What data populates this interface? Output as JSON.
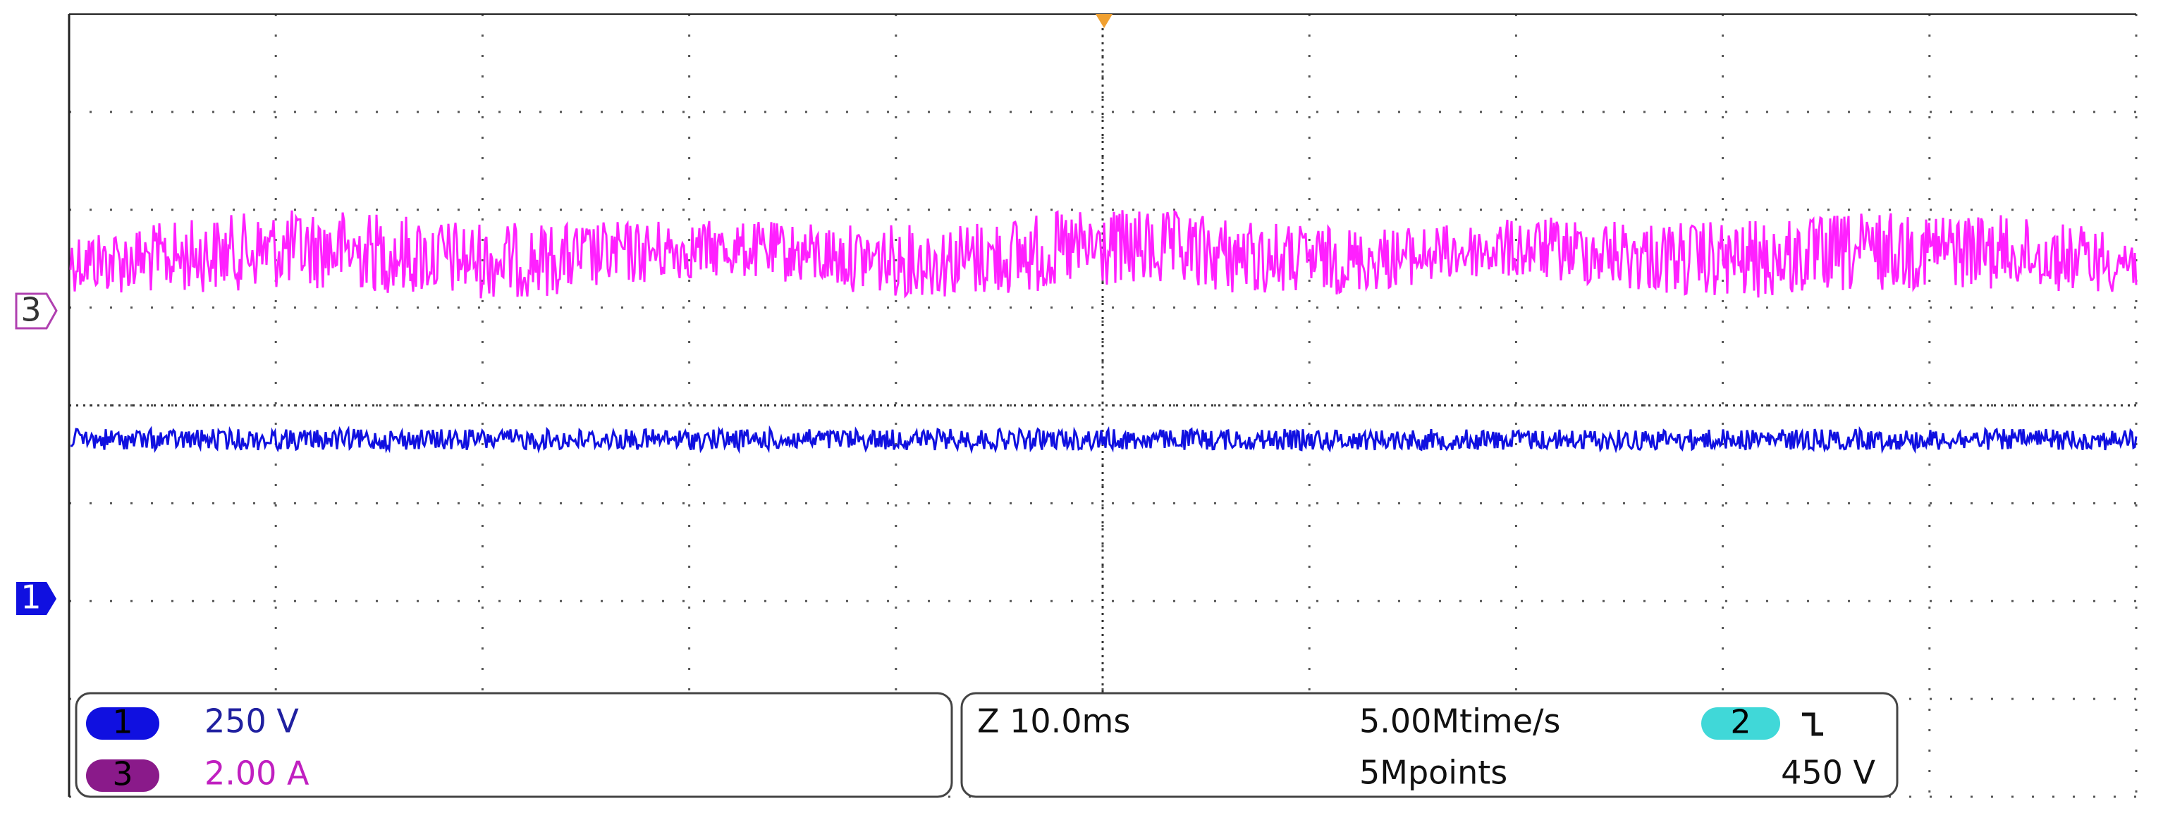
{
  "channel_markers": {
    "ch3": "3",
    "ch1": "1"
  },
  "info_left": {
    "ch1_badge": "1",
    "ch1_scale": "250 V",
    "ch3_badge": "3",
    "ch3_scale": "2.00 A"
  },
  "info_right": {
    "zoom": "Z 10.0ms",
    "sample_rate": "5.00Mtime/s",
    "record_length": "5Mpoints",
    "trigger_badge": "2",
    "trigger_level": "450 V"
  }
}
